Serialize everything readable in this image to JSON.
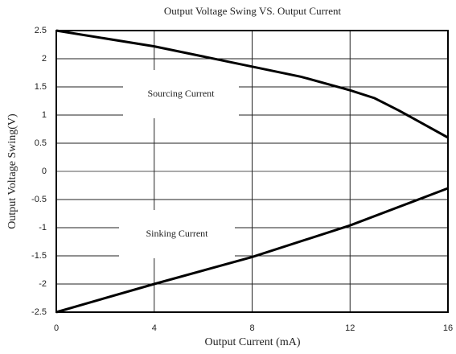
{
  "chart_data": {
    "type": "line",
    "title": "Output Voltage Swing VS. Output Current",
    "xlabel": "Output Current (mA)",
    "ylabel": "Output Voltage Swing(V)",
    "xlim": [
      0,
      16
    ],
    "xticks": [
      0,
      4,
      8,
      12,
      16
    ],
    "ylim": [
      -2.5,
      2.5
    ],
    "yticks": [
      -2.5,
      -2,
      -1.5,
      -1,
      -0.5,
      0,
      0.5,
      1,
      1.5,
      2,
      2.5
    ],
    "grid": true,
    "annotations": [
      "Sourcing Current",
      "Sinking Current"
    ],
    "series": [
      {
        "color": "#000000",
        "x": [
          0,
          4,
          8,
          10,
          12,
          13,
          14,
          16
        ],
        "values": [
          2.5,
          2.22,
          1.86,
          1.68,
          1.44,
          1.3,
          1.08,
          0.6
        ]
      },
      {
        "color": "#000000",
        "x": [
          0,
          4,
          8,
          12,
          16
        ],
        "values": [
          -2.5,
          -2.0,
          -1.52,
          -0.96,
          -0.3
        ]
      }
    ]
  }
}
